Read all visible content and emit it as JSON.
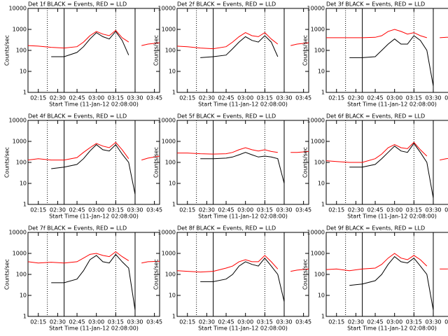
{
  "chart_data": [
    {
      "type": "line",
      "title": "Det 1f BLACK = Events, RED = LLD",
      "xlabel": "Start Time (11-Jan-12 02:08:00)",
      "ylabel": "Counts/sec",
      "log_y": true,
      "x": [
        "02:07",
        "02:15",
        "02:25",
        "02:35",
        "02:45",
        "02:50",
        "02:55",
        "03:00",
        "03:05",
        "03:10",
        "03:15",
        "03:20",
        "03:25",
        "03:30",
        "03:35",
        "03:40",
        "03:49"
      ],
      "xlim": [
        "02:07",
        "03:49"
      ],
      "xticks": [
        "02:15",
        "02:30",
        "02:45",
        "03:00",
        "03:15",
        "03:30",
        "03:45"
      ],
      "ylim": [
        1,
        10000
      ],
      "yticks": [
        1,
        10,
        100,
        1000,
        10000
      ],
      "vlines": [
        {
          "x": "02:22",
          "style": "dotted"
        },
        {
          "x": "02:35",
          "style": "solid"
        },
        {
          "x": "03:15",
          "style": "dotted"
        },
        {
          "x": "03:30",
          "style": "solid"
        }
      ],
      "series": [
        {
          "color": "#ff0000",
          "values": [
            170,
            160,
            140,
            130,
            150,
            250,
            500,
            800,
            600,
            500,
            900,
            400,
            250,
            null,
            170,
            200,
            230
          ]
        },
        {
          "color": "#000000",
          "values": [
            null,
            null,
            50,
            50,
            80,
            150,
            350,
            700,
            450,
            350,
            800,
            300,
            60,
            null,
            null,
            null,
            null
          ]
        }
      ]
    },
    {
      "type": "line",
      "title": "Det 2f BLACK = Events, RED = LLD",
      "xlabel": "Start Time (11-Jan-12 02:08:00)",
      "ylabel": "Counts/sec",
      "log_y": true,
      "x": [
        "02:07",
        "02:15",
        "02:25",
        "02:35",
        "02:45",
        "02:50",
        "02:55",
        "03:00",
        "03:05",
        "03:10",
        "03:15",
        "03:20",
        "03:25",
        "03:30",
        "03:35",
        "03:40",
        "03:49"
      ],
      "xlim": [
        "02:07",
        "03:49"
      ],
      "xticks": [
        "02:15",
        "02:30",
        "02:45",
        "03:00",
        "03:15",
        "03:30",
        "03:45"
      ],
      "ylim": [
        1,
        10000
      ],
      "yticks": [
        1,
        10,
        100,
        1000,
        10000
      ],
      "vlines": [
        {
          "x": "02:22",
          "style": "dotted"
        },
        {
          "x": "02:35",
          "style": "solid"
        },
        {
          "x": "03:15",
          "style": "dotted"
        },
        {
          "x": "03:30",
          "style": "solid"
        }
      ],
      "series": [
        {
          "color": "#ff0000",
          "values": [
            160,
            150,
            130,
            120,
            150,
            250,
            450,
            700,
            500,
            450,
            700,
            350,
            200,
            null,
            170,
            200,
            230
          ]
        },
        {
          "color": "#000000",
          "values": [
            null,
            null,
            45,
            50,
            60,
            120,
            250,
            450,
            300,
            250,
            500,
            250,
            50,
            null,
            null,
            null,
            null
          ]
        }
      ]
    },
    {
      "type": "line",
      "title": "Det 3f BLACK = Events, RED = LLD",
      "xlabel": "Start Time (11-Jan-12 02:08:00)",
      "ylabel": "Counts/sec",
      "log_y": true,
      "x": [
        "02:07",
        "02:15",
        "02:25",
        "02:35",
        "02:45",
        "02:50",
        "02:55",
        "03:00",
        "03:05",
        "03:10",
        "03:15",
        "03:20",
        "03:25",
        "03:30",
        "03:35",
        "03:40",
        "03:49"
      ],
      "xlim": [
        "02:07",
        "03:49"
      ],
      "xticks": [
        "02:15",
        "02:30",
        "02:45",
        "03:00",
        "03:15",
        "03:30",
        "03:45"
      ],
      "ylim": [
        1,
        10000
      ],
      "yticks": [
        1,
        10,
        100,
        1000,
        10000
      ],
      "vlines": [
        {
          "x": "02:22",
          "style": "dotted"
        },
        {
          "x": "02:35",
          "style": "solid"
        },
        {
          "x": "03:15",
          "style": "dotted"
        },
        {
          "x": "03:30",
          "style": "solid"
        }
      ],
      "series": [
        {
          "color": "#ff0000",
          "values": [
            400,
            400,
            400,
            400,
            420,
            500,
            800,
            1000,
            800,
            600,
            700,
            500,
            400,
            null,
            400,
            420,
            420
          ]
        },
        {
          "color": "#000000",
          "values": [
            null,
            null,
            45,
            45,
            50,
            100,
            200,
            350,
            200,
            200,
            500,
            300,
            100,
            2,
            null,
            null,
            null
          ]
        }
      ]
    },
    {
      "type": "line",
      "title": "Det 4f BLACK = Events, RED = LLD",
      "xlabel": "Start Time (11-Jan-12 02:08:00)",
      "ylabel": "Counts/sec",
      "log_y": true,
      "x": [
        "02:07",
        "02:15",
        "02:25",
        "02:35",
        "02:45",
        "02:50",
        "02:55",
        "03:00",
        "03:05",
        "03:10",
        "03:15",
        "03:20",
        "03:25",
        "03:30",
        "03:35",
        "03:40",
        "03:49"
      ],
      "xlim": [
        "02:07",
        "03:49"
      ],
      "xticks": [
        "02:15",
        "02:30",
        "02:45",
        "03:00",
        "03:15",
        "03:30",
        "03:45"
      ],
      "ylim": [
        1,
        10000
      ],
      "yticks": [
        1,
        10,
        100,
        1000,
        10000
      ],
      "vlines": [
        {
          "x": "02:22",
          "style": "dotted"
        },
        {
          "x": "02:35",
          "style": "solid"
        },
        {
          "x": "03:15",
          "style": "dotted"
        },
        {
          "x": "03:30",
          "style": "solid"
        }
      ],
      "series": [
        {
          "color": "#ff0000",
          "values": [
            130,
            150,
            130,
            130,
            170,
            300,
            500,
            800,
            600,
            500,
            900,
            400,
            150,
            null,
            130,
            160,
            200
          ]
        },
        {
          "color": "#000000",
          "values": [
            null,
            null,
            50,
            60,
            80,
            150,
            350,
            700,
            400,
            350,
            700,
            250,
            100,
            3,
            null,
            null,
            null
          ]
        }
      ]
    },
    {
      "type": "line",
      "title": "Det 5f BLACK = Events, RED = LLD",
      "xlabel": "Start Time (11-Jan-12 02:08:00)",
      "ylabel": "Counts/sec",
      "log_y": true,
      "x": [
        "02:07",
        "02:15",
        "02:25",
        "02:35",
        "02:45",
        "02:50",
        "02:55",
        "03:00",
        "03:05",
        "03:10",
        "03:15",
        "03:20",
        "03:25",
        "03:30",
        "03:35",
        "03:40",
        "03:49"
      ],
      "xlim": [
        "02:07",
        "03:49"
      ],
      "xticks": [
        "02:15",
        "02:30",
        "02:45",
        "03:00",
        "03:15",
        "03:30",
        "03:45"
      ],
      "ylim": [
        1,
        10000
      ],
      "yticks": [
        1,
        10,
        100,
        1000,
        10000
      ],
      "vlines": [
        {
          "x": "02:22",
          "style": "dotted"
        },
        {
          "x": "02:35",
          "style": "solid"
        },
        {
          "x": "03:15",
          "style": "dotted"
        },
        {
          "x": "03:30",
          "style": "solid"
        }
      ],
      "series": [
        {
          "color": "#ff0000",
          "values": [
            280,
            280,
            260,
            250,
            260,
            300,
            400,
            500,
            400,
            350,
            400,
            330,
            300,
            null,
            300,
            300,
            330
          ]
        },
        {
          "color": "#000000",
          "values": [
            null,
            null,
            150,
            150,
            160,
            180,
            230,
            300,
            230,
            180,
            200,
            180,
            150,
            10,
            null,
            null,
            null
          ]
        }
      ]
    },
    {
      "type": "line",
      "title": "Det 6f BLACK = Events, RED = LLD",
      "xlabel": "Start Time (11-Jan-12 02:08:00)",
      "ylabel": "Counts/sec",
      "log_y": true,
      "x": [
        "02:07",
        "02:15",
        "02:25",
        "02:35",
        "02:45",
        "02:50",
        "02:55",
        "03:00",
        "03:05",
        "03:10",
        "03:15",
        "03:20",
        "03:25",
        "03:30",
        "03:35",
        "03:40",
        "03:49"
      ],
      "xlim": [
        "02:07",
        "03:49"
      ],
      "xticks": [
        "02:15",
        "02:30",
        "02:45",
        "03:00",
        "03:15",
        "03:30",
        "03:45"
      ],
      "ylim": [
        1,
        10000
      ],
      "yticks": [
        1,
        10,
        100,
        1000,
        10000
      ],
      "vlines": [
        {
          "x": "02:22",
          "style": "dotted"
        },
        {
          "x": "02:35",
          "style": "solid"
        },
        {
          "x": "03:15",
          "style": "dotted"
        },
        {
          "x": "03:30",
          "style": "solid"
        }
      ],
      "series": [
        {
          "color": "#ff0000",
          "values": [
            120,
            110,
            100,
            100,
            150,
            250,
            500,
            700,
            500,
            450,
            900,
            400,
            200,
            null,
            130,
            150,
            180
          ]
        },
        {
          "color": "#000000",
          "values": [
            null,
            null,
            60,
            60,
            80,
            150,
            300,
            600,
            350,
            300,
            800,
            300,
            100,
            2,
            null,
            null,
            null
          ]
        }
      ]
    },
    {
      "type": "line",
      "title": "Det 7f BLACK = Events, RED = LLD",
      "xlabel": "Start Time (11-Jan-12 02:08:00)",
      "ylabel": "Counts/sec",
      "log_y": true,
      "x": [
        "02:07",
        "02:15",
        "02:25",
        "02:35",
        "02:45",
        "02:50",
        "02:55",
        "03:00",
        "03:05",
        "03:10",
        "03:15",
        "03:20",
        "03:25",
        "03:30",
        "03:35",
        "03:40",
        "03:49"
      ],
      "xlim": [
        "02:07",
        "03:49"
      ],
      "xticks": [
        "02:15",
        "02:30",
        "02:45",
        "03:00",
        "03:15",
        "03:30",
        "03:45"
      ],
      "ylim": [
        1,
        10000
      ],
      "yticks": [
        1,
        10,
        100,
        1000,
        10000
      ],
      "vlines": [
        {
          "x": "02:22",
          "style": "dotted"
        },
        {
          "x": "02:35",
          "style": "solid"
        },
        {
          "x": "03:15",
          "style": "dotted"
        },
        {
          "x": "03:30",
          "style": "solid"
        }
      ],
      "series": [
        {
          "color": "#ff0000",
          "values": [
            400,
            350,
            380,
            350,
            400,
            600,
            900,
            1000,
            800,
            700,
            1200,
            700,
            450,
            null,
            350,
            400,
            420
          ]
        },
        {
          "color": "#000000",
          "values": [
            null,
            null,
            40,
            40,
            60,
            150,
            500,
            800,
            400,
            350,
            900,
            400,
            200,
            2,
            null,
            null,
            null
          ]
        }
      ]
    },
    {
      "type": "line",
      "title": "Det 8f BLACK = Events, RED = LLD",
      "xlabel": "Start Time (11-Jan-12 02:08:00)",
      "ylabel": "Counts/sec",
      "log_y": true,
      "x": [
        "02:07",
        "02:15",
        "02:25",
        "02:35",
        "02:45",
        "02:50",
        "02:55",
        "03:00",
        "03:05",
        "03:10",
        "03:15",
        "03:20",
        "03:25",
        "03:30",
        "03:35",
        "03:40",
        "03:49"
      ],
      "xlim": [
        "02:07",
        "03:49"
      ],
      "xticks": [
        "02:15",
        "02:30",
        "02:45",
        "03:00",
        "03:15",
        "03:30",
        "03:45"
      ],
      "ylim": [
        1,
        10000
      ],
      "yticks": [
        1,
        10,
        100,
        1000,
        10000
      ],
      "vlines": [
        {
          "x": "02:22",
          "style": "dotted"
        },
        {
          "x": "02:35",
          "style": "solid"
        },
        {
          "x": "03:15",
          "style": "dotted"
        },
        {
          "x": "03:30",
          "style": "solid"
        }
      ],
      "series": [
        {
          "color": "#ff0000",
          "values": [
            150,
            140,
            130,
            140,
            200,
            250,
            400,
            500,
            400,
            400,
            800,
            400,
            180,
            null,
            140,
            160,
            180
          ]
        },
        {
          "color": "#000000",
          "values": [
            null,
            null,
            45,
            45,
            60,
            100,
            250,
            400,
            300,
            250,
            600,
            250,
            100,
            5,
            null,
            null,
            null
          ]
        }
      ]
    },
    {
      "type": "line",
      "title": "Det 9f BLACK = Events, RED = LLD",
      "xlabel": "Start Time (11-Jan-12 02:08:00)",
      "ylabel": "Counts/sec",
      "log_y": true,
      "x": [
        "02:07",
        "02:15",
        "02:25",
        "02:35",
        "02:45",
        "02:50",
        "02:55",
        "03:00",
        "03:05",
        "03:10",
        "03:15",
        "03:20",
        "03:25",
        "03:30",
        "03:35",
        "03:40",
        "03:49"
      ],
      "xlim": [
        "02:07",
        "03:49"
      ],
      "xticks": [
        "02:15",
        "02:30",
        "02:45",
        "03:00",
        "03:15",
        "03:30",
        "03:45"
      ],
      "ylim": [
        1,
        10000
      ],
      "yticks": [
        1,
        10,
        100,
        1000,
        10000
      ],
      "vlines": [
        {
          "x": "02:22",
          "style": "dotted"
        },
        {
          "x": "02:35",
          "style": "solid"
        },
        {
          "x": "03:15",
          "style": "dotted"
        },
        {
          "x": "03:30",
          "style": "solid"
        }
      ],
      "series": [
        {
          "color": "#ff0000",
          "values": [
            170,
            180,
            150,
            180,
            200,
            300,
            600,
            1000,
            600,
            500,
            800,
            500,
            250,
            null,
            180,
            180,
            200
          ]
        },
        {
          "color": "#000000",
          "values": [
            null,
            null,
            30,
            35,
            50,
            100,
            300,
            700,
            400,
            350,
            600,
            250,
            100,
            2,
            null,
            null,
            null
          ]
        }
      ]
    }
  ]
}
